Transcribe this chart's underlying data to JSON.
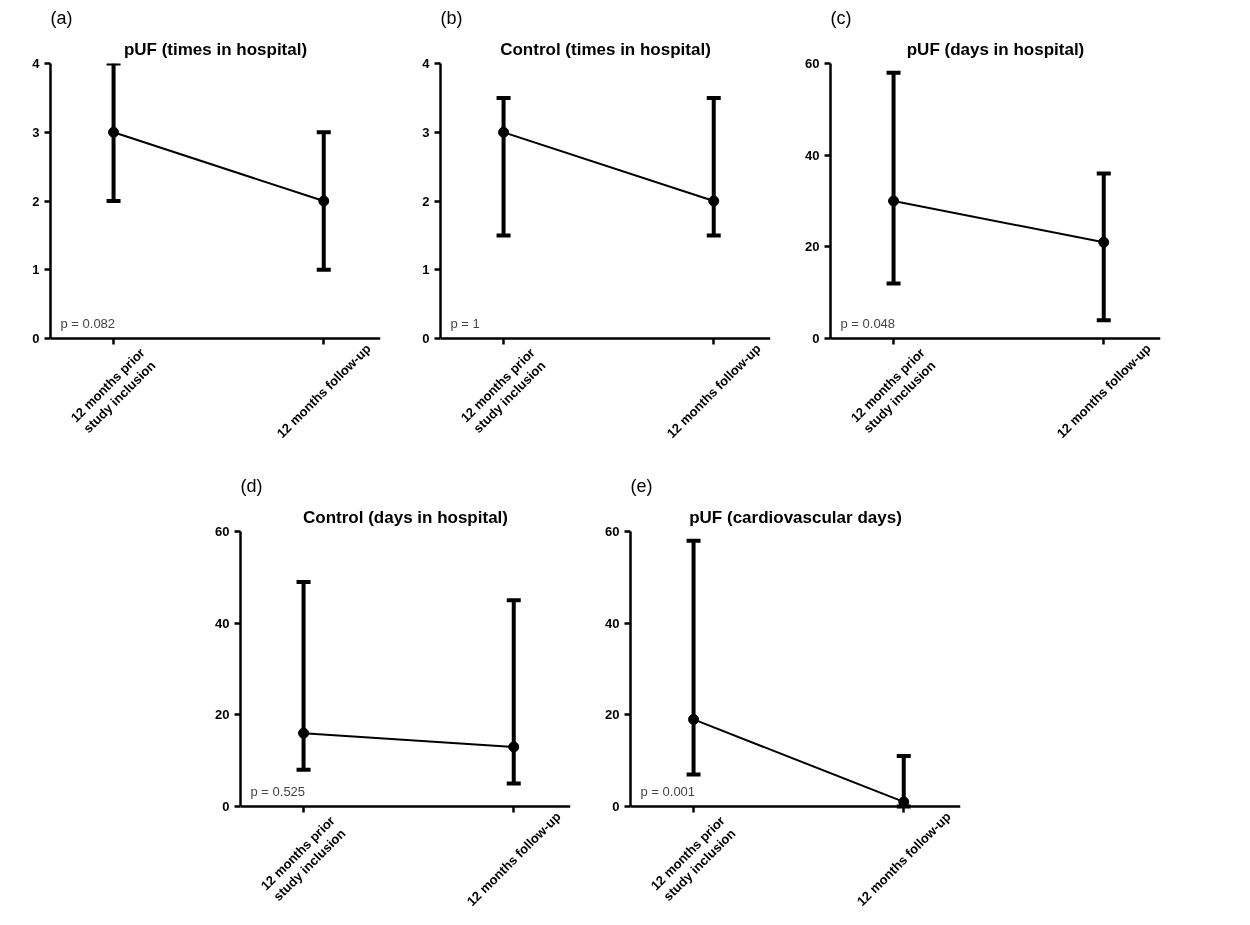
{
  "chart_data": [
    {
      "type": "line",
      "title": "pUF (times in hospital)",
      "annotations": [
        "(a)",
        "p = 0.082"
      ],
      "categories": [
        "12 months prior\nstudy inclusion",
        "12 months follow-up"
      ],
      "series": [
        {
          "color": "#000000",
          "values": [
            3,
            2
          ],
          "errors": [
            [
              2,
              4
            ],
            [
              1,
              3
            ]
          ]
        }
      ],
      "ylim": [
        0,
        4
      ],
      "yticks": [
        0,
        1,
        2,
        3,
        4
      ],
      "grid": false,
      "marker": "circle",
      "line_style": "solid"
    },
    {
      "type": "line",
      "title": "Control (times in hospital)",
      "annotations": [
        "(b)",
        "p = 1"
      ],
      "categories": [
        "12 months prior\nstudy inclusion",
        "12 months follow-up"
      ],
      "series": [
        {
          "color": "#000000",
          "values": [
            3,
            2
          ],
          "errors": [
            [
              1.5,
              3.5
            ],
            [
              1.5,
              3.5
            ]
          ]
        }
      ],
      "ylim": [
        0,
        4
      ],
      "yticks": [
        0,
        1,
        2,
        3,
        4
      ],
      "grid": false,
      "marker": "circle",
      "line_style": "solid"
    },
    {
      "type": "line",
      "title": "pUF (days in hospital)",
      "annotations": [
        "(c)",
        "p = 0.048"
      ],
      "categories": [
        "12 months prior\nstudy inclusion",
        "12 months follow-up"
      ],
      "series": [
        {
          "color": "#000000",
          "values": [
            30,
            21
          ],
          "errors": [
            [
              12,
              58
            ],
            [
              4,
              36
            ]
          ]
        }
      ],
      "ylim": [
        0,
        60
      ],
      "yticks": [
        0,
        20,
        40,
        60
      ],
      "grid": false,
      "marker": "circle",
      "line_style": "solid"
    },
    {
      "type": "line",
      "title": "Control (days in hospital)",
      "annotations": [
        "(d)",
        "p = 0.525"
      ],
      "categories": [
        "12 months prior\nstudy inclusion",
        "12 months follow-up"
      ],
      "series": [
        {
          "color": "#000000",
          "values": [
            16,
            13
          ],
          "errors": [
            [
              8,
              49
            ],
            [
              5,
              45
            ]
          ]
        }
      ],
      "ylim": [
        0,
        60
      ],
      "yticks": [
        0,
        20,
        40,
        60
      ],
      "grid": false,
      "marker": "circle",
      "line_style": "solid"
    },
    {
      "type": "line",
      "title": "pUF (cardiovascular days)",
      "annotations": [
        "(e)",
        "p = 0.001"
      ],
      "categories": [
        "12 months prior\nstudy inclusion",
        "12 months follow-up"
      ],
      "series": [
        {
          "color": "#000000",
          "values": [
            19,
            1
          ],
          "errors": [
            [
              7,
              58
            ],
            [
              0,
              11
            ]
          ]
        }
      ],
      "ylim": [
        0,
        60
      ],
      "yticks": [
        0,
        20,
        40,
        60
      ],
      "grid": false,
      "marker": "circle",
      "line_style": "solid"
    }
  ]
}
